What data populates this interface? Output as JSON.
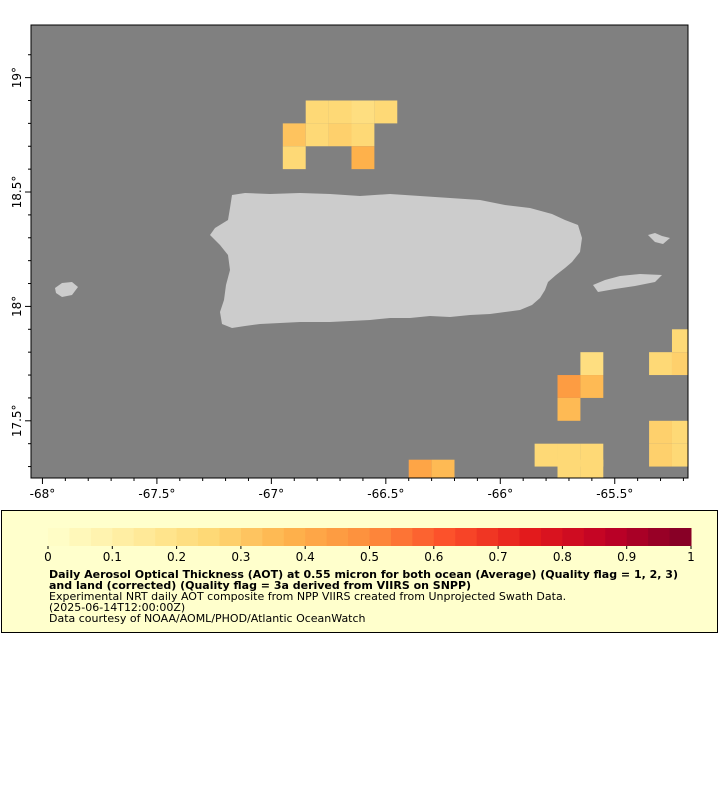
{
  "map": {
    "colors": {
      "ocean": "#808080",
      "land": "#cccccc",
      "frame": "#000000"
    },
    "lon_ticks": [
      {
        "value": -68.0,
        "label": "-68°"
      },
      {
        "value": -67.5,
        "label": "-67.5°"
      },
      {
        "value": -67.0,
        "label": "-67°"
      },
      {
        "value": -66.5,
        "label": "-66.5°"
      },
      {
        "value": -66.0,
        "label": "-66°"
      },
      {
        "value": -65.5,
        "label": "-65.5°"
      }
    ],
    "lat_ticks": [
      {
        "value": 17.5,
        "label": "17.5°"
      },
      {
        "value": 18.0,
        "label": "18°"
      },
      {
        "value": 18.5,
        "label": "18.5°"
      },
      {
        "value": 19.0,
        "label": "19°"
      }
    ],
    "lon_range": [
      -68.05,
      -65.18
    ],
    "lat_range": [
      17.25,
      19.23
    ]
  },
  "chart_data": {
    "type": "heatmap",
    "variable": "Daily Aerosol Optical Thickness (AOT) at 0.55 micron",
    "cell_size_deg": 0.1,
    "cells": [
      {
        "lon": -66.8,
        "lat": 18.85,
        "value": 0.25
      },
      {
        "lon": -66.7,
        "lat": 18.85,
        "value": 0.25
      },
      {
        "lon": -66.6,
        "lat": 18.85,
        "value": 0.22
      },
      {
        "lon": -66.5,
        "lat": 18.85,
        "value": 0.25
      },
      {
        "lon": -66.9,
        "lat": 18.75,
        "value": 0.32
      },
      {
        "lon": -66.8,
        "lat": 18.75,
        "value": 0.25
      },
      {
        "lon": -66.7,
        "lat": 18.75,
        "value": 0.28
      },
      {
        "lon": -66.6,
        "lat": 18.75,
        "value": 0.25
      },
      {
        "lon": -66.9,
        "lat": 18.65,
        "value": 0.25
      },
      {
        "lon": -66.6,
        "lat": 18.65,
        "value": 0.38
      },
      {
        "lon": -65.6,
        "lat": 17.75,
        "value": 0.22
      },
      {
        "lon": -65.3,
        "lat": 17.75,
        "value": 0.25
      },
      {
        "lon": -65.2,
        "lat": 17.75,
        "value": 0.28
      },
      {
        "lon": -65.2,
        "lat": 17.85,
        "value": 0.25
      },
      {
        "lon": -65.7,
        "lat": 17.65,
        "value": 0.45
      },
      {
        "lon": -65.6,
        "lat": 17.65,
        "value": 0.35
      },
      {
        "lon": -65.7,
        "lat": 17.55,
        "value": 0.35
      },
      {
        "lon": -65.3,
        "lat": 17.45,
        "value": 0.28
      },
      {
        "lon": -65.2,
        "lat": 17.45,
        "value": 0.25
      },
      {
        "lon": -65.8,
        "lat": 17.35,
        "value": 0.25
      },
      {
        "lon": -65.7,
        "lat": 17.35,
        "value": 0.25
      },
      {
        "lon": -65.6,
        "lat": 17.35,
        "value": 0.25
      },
      {
        "lon": -65.3,
        "lat": 17.35,
        "value": 0.28
      },
      {
        "lon": -65.2,
        "lat": 17.35,
        "value": 0.25
      },
      {
        "lon": -65.7,
        "lat": 17.28,
        "value": 0.25
      },
      {
        "lon": -65.6,
        "lat": 17.28,
        "value": 0.25
      },
      {
        "lon": -66.35,
        "lat": 17.28,
        "value": 0.42
      },
      {
        "lon": -66.25,
        "lat": 17.28,
        "value": 0.35
      }
    ]
  },
  "legend": {
    "range": [
      0,
      1
    ],
    "tick_labels": [
      "0",
      "0.1",
      "0.2",
      "0.3",
      "0.4",
      "0.5",
      "0.6",
      "0.7",
      "0.8",
      "0.9",
      "1"
    ],
    "title": "Daily Aerosol Optical Thickness (AOT) at 0.55 micron for both ocean (Average) (Quality flag = 1, 2, 3) and land (corrected) (Quality flag = 3a derived from VIIRS on SNPP)",
    "line1": "Experimental NRT daily AOT composite from NPP VIIRS created from Unprojected Swath Data.",
    "line2": "(2025-06-14T12:00:00Z)",
    "line3": "Data courtesy of NOAA/AOML/PHOD/Atlantic OceanWatch"
  }
}
